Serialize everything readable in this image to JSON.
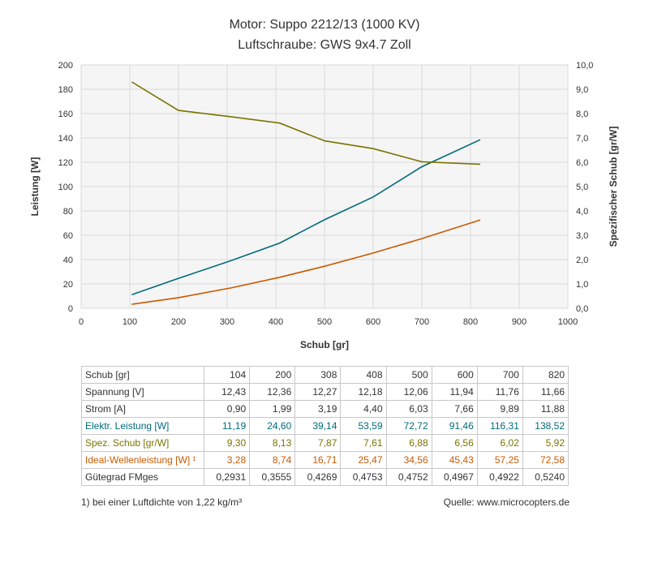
{
  "colors": {
    "leistung": "#006b7a",
    "wellen": "#c85a00",
    "schub_spez": "#7a7400",
    "grid": "#d9d9d9",
    "plot_bg": "#f5f5f5"
  },
  "chart_data": {
    "type": "line",
    "title": "Motor: Suppo 2212/13 (1000 KV)",
    "subtitle": "Luftschraube: GWS 9x4.7 Zoll",
    "xlabel": "Schub [gr]",
    "ylabel": "Leistung [W]",
    "y2label": "Spezifischer Schub [gr/W]",
    "xlim": [
      0,
      1000
    ],
    "ylim": [
      0,
      200
    ],
    "y2lim": [
      0,
      10
    ],
    "x_ticks": [
      "0",
      "100",
      "200",
      "300",
      "400",
      "500",
      "600",
      "700",
      "800",
      "900",
      "1000"
    ],
    "y_ticks": [
      "0",
      "20",
      "40",
      "60",
      "80",
      "100",
      "120",
      "140",
      "160",
      "180",
      "200"
    ],
    "y2_ticks": [
      "0,0",
      "1,0",
      "2,0",
      "3,0",
      "4,0",
      "5,0",
      "6,0",
      "7,0",
      "8,0",
      "9,0",
      "10,0"
    ],
    "grid": true,
    "x": [
      104,
      200,
      308,
      408,
      500,
      600,
      700,
      820
    ],
    "series": [
      {
        "values": [
          11.19,
          24.6,
          39.14,
          53.59,
          72.72,
          91.46,
          116.31,
          138.52
        ],
        "axis": "left",
        "color": "#006b7a"
      },
      {
        "values": [
          3.28,
          8.74,
          16.71,
          25.47,
          34.56,
          45.43,
          57.25,
          72.58
        ],
        "axis": "left",
        "color": "#c85a00"
      },
      {
        "values": [
          9.3,
          8.13,
          7.87,
          7.61,
          6.88,
          6.56,
          6.02,
          5.92
        ],
        "axis": "right",
        "color": "#7a7400"
      }
    ]
  },
  "table": {
    "rows": [
      {
        "label": "Schub [gr]",
        "color": "#333333",
        "values": [
          "104",
          "200",
          "308",
          "408",
          "500",
          "600",
          "700",
          "820"
        ]
      },
      {
        "label": "Spannung [V]",
        "color": "#333333",
        "values": [
          "12,43",
          "12,36",
          "12,27",
          "12,18",
          "12,06",
          "11,94",
          "11,76",
          "11,66"
        ]
      },
      {
        "label": "Strom [A]",
        "color": "#333333",
        "values": [
          "0,90",
          "1,99",
          "3,19",
          "4,40",
          "6,03",
          "7,66",
          "9,89",
          "11,88"
        ]
      },
      {
        "label": "Elektr. Leistung [W]",
        "color": "#006b7a",
        "values": [
          "11,19",
          "24,60",
          "39,14",
          "53,59",
          "72,72",
          "91,46",
          "116,31",
          "138,52"
        ]
      },
      {
        "label": "Spez. Schub [gr/W]",
        "color": "#7a7400",
        "values": [
          "9,30",
          "8,13",
          "7,87",
          "7,61",
          "6,88",
          "6,56",
          "6,02",
          "5,92"
        ]
      },
      {
        "label": "Ideal-Wellenleistung [W] ¹",
        "color": "#c85a00",
        "values": [
          "3,28",
          "8,74",
          "16,71",
          "25,47",
          "34,56",
          "45,43",
          "57,25",
          "72,58"
        ]
      },
      {
        "label": "Gütegrad FMges",
        "color": "#333333",
        "values": [
          "0,2931",
          "0,3555",
          "0,4269",
          "0,4753",
          "0,4752",
          "0,4967",
          "0,4922",
          "0,5240"
        ]
      }
    ]
  },
  "footnote": "1) bei einer Luftdichte von 1,22 kg/m³",
  "source": "Quelle: www.microcopters.de"
}
